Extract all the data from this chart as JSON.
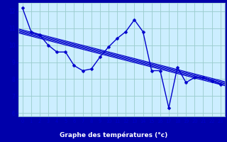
{
  "xlabel": "Graphe des températures (°c)",
  "xlim": [
    -0.5,
    23.5
  ],
  "ylim": [
    5.8,
    12.5
  ],
  "yticks": [
    6,
    7,
    8,
    9,
    10,
    11,
    12
  ],
  "xticks": [
    0,
    1,
    2,
    3,
    4,
    5,
    6,
    7,
    8,
    9,
    10,
    11,
    12,
    13,
    14,
    15,
    16,
    17,
    18,
    19,
    20,
    21,
    22,
    23
  ],
  "bg_color": "#cceeff",
  "plot_bg_color": "#cceeff",
  "label_bg_color": "#0000aa",
  "label_text_color": "#ffffff",
  "line_color": "#0000cc",
  "grid_color": "#99cccc",
  "data_x": [
    0,
    1,
    2,
    3,
    4,
    5,
    6,
    7,
    8,
    9,
    10,
    11,
    12,
    13,
    14,
    15,
    16,
    17,
    18,
    19,
    20,
    21,
    22,
    23
  ],
  "data_y": [
    12.2,
    10.8,
    10.6,
    10.0,
    9.6,
    9.6,
    8.8,
    8.5,
    8.6,
    9.3,
    9.9,
    10.4,
    10.8,
    11.5,
    10.8,
    8.5,
    8.5,
    6.3,
    8.7,
    7.8,
    8.1,
    8.1,
    7.9,
    7.7
  ],
  "marker_size": 2.5,
  "line_width": 1.0,
  "reg_offsets": [
    -0.12,
    -0.06,
    0.0,
    0.06,
    0.12
  ],
  "reg_lw": 0.8
}
